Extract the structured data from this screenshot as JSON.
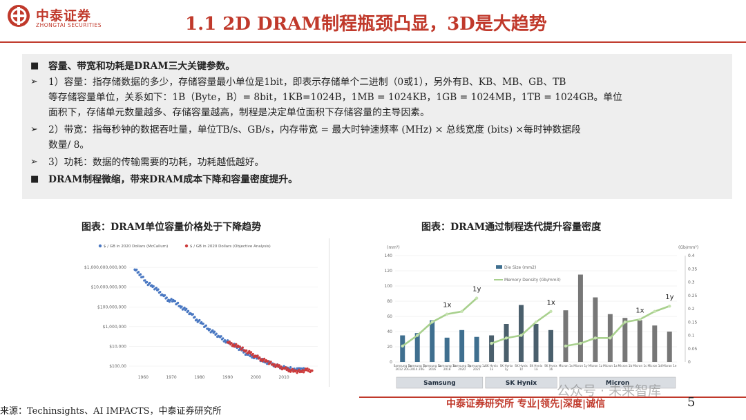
{
  "header": {
    "brand_cn": "中泰证券",
    "brand_en": "ZHONGTAI SECURITIES",
    "title": "1.1 2D DRAM制程瓶颈凸显，3D是大趋势"
  },
  "bullets": [
    {
      "marker": "■",
      "lines": [
        "容量、带宽和功耗是DRAM三大关键参数。"
      ],
      "bold": true
    },
    {
      "marker": "➢",
      "lines": [
        "1）容量：指存储数据的多少，存储容量最小单位是1bit，即表示存储单个二进制（0或1），另外有B、KB、MB、GB、TB",
        "等存储容量单位，关系如下：1B（Byte，B）= 8bit，1KB=1024B，1MB = 1024KB，1GB = 1024MB，1TB = 1024GB。单位",
        "面积下，存储单元数量越多、存储容量越高，制程是决定单位面积下存储容量的主导因素。"
      ],
      "bold": false
    },
    {
      "marker": "➢",
      "lines": [
        "2）带宽：指每秒钟的数据吞吐量，单位TB/s、GB/s，内存带宽 = 最大时钟速频率 (MHz) × 总线宽度 (bits) ×每时钟数据段",
        "数量/ 8。"
      ],
      "bold": false
    },
    {
      "marker": "➢",
      "lines": [
        "3）功耗：数据的传输需要的功耗，功耗越低越好。"
      ],
      "bold": false
    },
    {
      "marker": "■",
      "lines": [
        "DRAM制程微缩，带来DRAM成本下降和容量密度提升。"
      ],
      "bold": true
    }
  ],
  "figures": {
    "left_caption": "图表：DRAM单位容量价格处于下降趋势",
    "right_caption": "图表：DRAM通过制程迭代提升容量密度"
  },
  "chart_data": [
    {
      "type": "scatter",
      "legend": [
        "$ / GB in 2020 Dollars (McCallum)",
        "$ / GB in 2020 Dollars (Objective Analysis)"
      ],
      "legend_position": "top-left",
      "y_scale": "log",
      "ytick_labels": [
        "$1,000,000,000,000",
        "$10,000,000,000",
        "$100,000,000",
        "$1,000,000",
        "$10,000",
        "$100.00"
      ],
      "xtick_labels": [
        "1960",
        "1970",
        "1980",
        "1990",
        "2000",
        "2010"
      ],
      "xlim": [
        1955,
        2022
      ],
      "colors": {
        "McCallum": "#4a78c2",
        "Objective Analysis": "#cc3b3b"
      },
      "series": [
        {
          "name": "$ / GB in 2020 Dollars (McCallum)",
          "x": [
            1957,
            1959,
            1961,
            1963,
            1965,
            1967,
            1969,
            1971,
            1973,
            1975,
            1977,
            1979,
            1981,
            1983,
            1985,
            1987,
            1989,
            1991,
            1993,
            1995,
            1997,
            1999,
            2001,
            2003,
            2005,
            2007,
            2009,
            2011,
            2013,
            2015,
            2017
          ],
          "y": [
            600000000000.0,
            200000000000.0,
            30000000000.0,
            15000000000.0,
            5000000000.0,
            1500000000.0,
            500000000.0,
            400000000.0,
            120000000.0,
            50000000.0,
            20000000.0,
            5000000.0,
            2000000.0,
            600000.0,
            250000.0,
            100000.0,
            40000.0,
            20000.0,
            10000.0,
            4000.0,
            1500.0,
            1000.0,
            600.0,
            300.0,
            200.0,
            120.0,
            80,
            60,
            50,
            40,
            60
          ]
        },
        {
          "name": "$ / GB in 2020 Dollars (Objective Analysis)",
          "x": [
            1990,
            1992,
            1994,
            1996,
            1998,
            2000,
            2002,
            2004,
            2006,
            2008,
            2010,
            2012,
            2014,
            2016,
            2018,
            2020
          ],
          "y": [
            25000.0,
            15000.0,
            9000.0,
            4000.0,
            2000.0,
            1000.0,
            500.0,
            300.0,
            150.0,
            90,
            60,
            40,
            30,
            30,
            40,
            35
          ]
        }
      ]
    },
    {
      "type": "bar",
      "y_unit_left": "(mm²)",
      "y_unit_right": "(Gb/mm²)",
      "ylim_left": [
        0,
        140
      ],
      "ylim_right": [
        0,
        0.4
      ],
      "ytick_left": [
        "0",
        "20",
        "40",
        "60",
        "80",
        "100",
        "120",
        "140"
      ],
      "ytick_right": [
        "0",
        "0.05",
        "0.1",
        "0.15",
        "0.2",
        "0.25",
        "0.3",
        "0.35",
        "0.4"
      ],
      "categories": [
        "Samsung 1x 2012 20G",
        "Samsung 1y 2014 20G",
        "Samsung 1z 2016",
        "Samsung 1x 2018",
        "Samsung 1y 2020",
        "Samsung 1z 2021",
        "SK Hynix 1x",
        "SK Hynix 1y",
        "SK Hynix 1z",
        "SK Hynix 1a",
        "SK Hynix 1b",
        "Micron 1x",
        "Micron 1y",
        "Micron 1z",
        "Micron 1a",
        "Micron 1b",
        "Micron 1c",
        "Micron 1d",
        "Micron 1e"
      ],
      "series": [
        {
          "name": "Die Size (mm2)",
          "color": "#6b8fa3",
          "values": [
            35,
            38,
            55,
            32,
            42,
            33,
            35,
            50,
            75,
            50,
            42,
            68,
            115,
            85,
            63,
            58,
            55,
            48,
            40
          ]
        },
        {
          "name": "Memory Density (Gb/mm3)",
          "color": "#a8d08d",
          "values": [
            0.06,
            0.1,
            0.15,
            0.18,
            0.19,
            0.24,
            0.07,
            0.09,
            0.1,
            0.15,
            0.19,
            0.06,
            0.07,
            0.09,
            0.09,
            0.15,
            0.16,
            0.19,
            0.21
          ]
        }
      ],
      "annotations": [
        "1x",
        "1y",
        "1x",
        "1x",
        "1y"
      ],
      "groups": [
        "Samsung",
        "SK Hynix",
        "Micron"
      ]
    }
  ],
  "footer": {
    "source": "来源：Techinsights、AI IMPACTS，中泰证券研究所",
    "brand": "中泰证券研究所 专业|领先|深度|诚信",
    "watermark": "公众号 · 未来智库",
    "page": "5"
  }
}
